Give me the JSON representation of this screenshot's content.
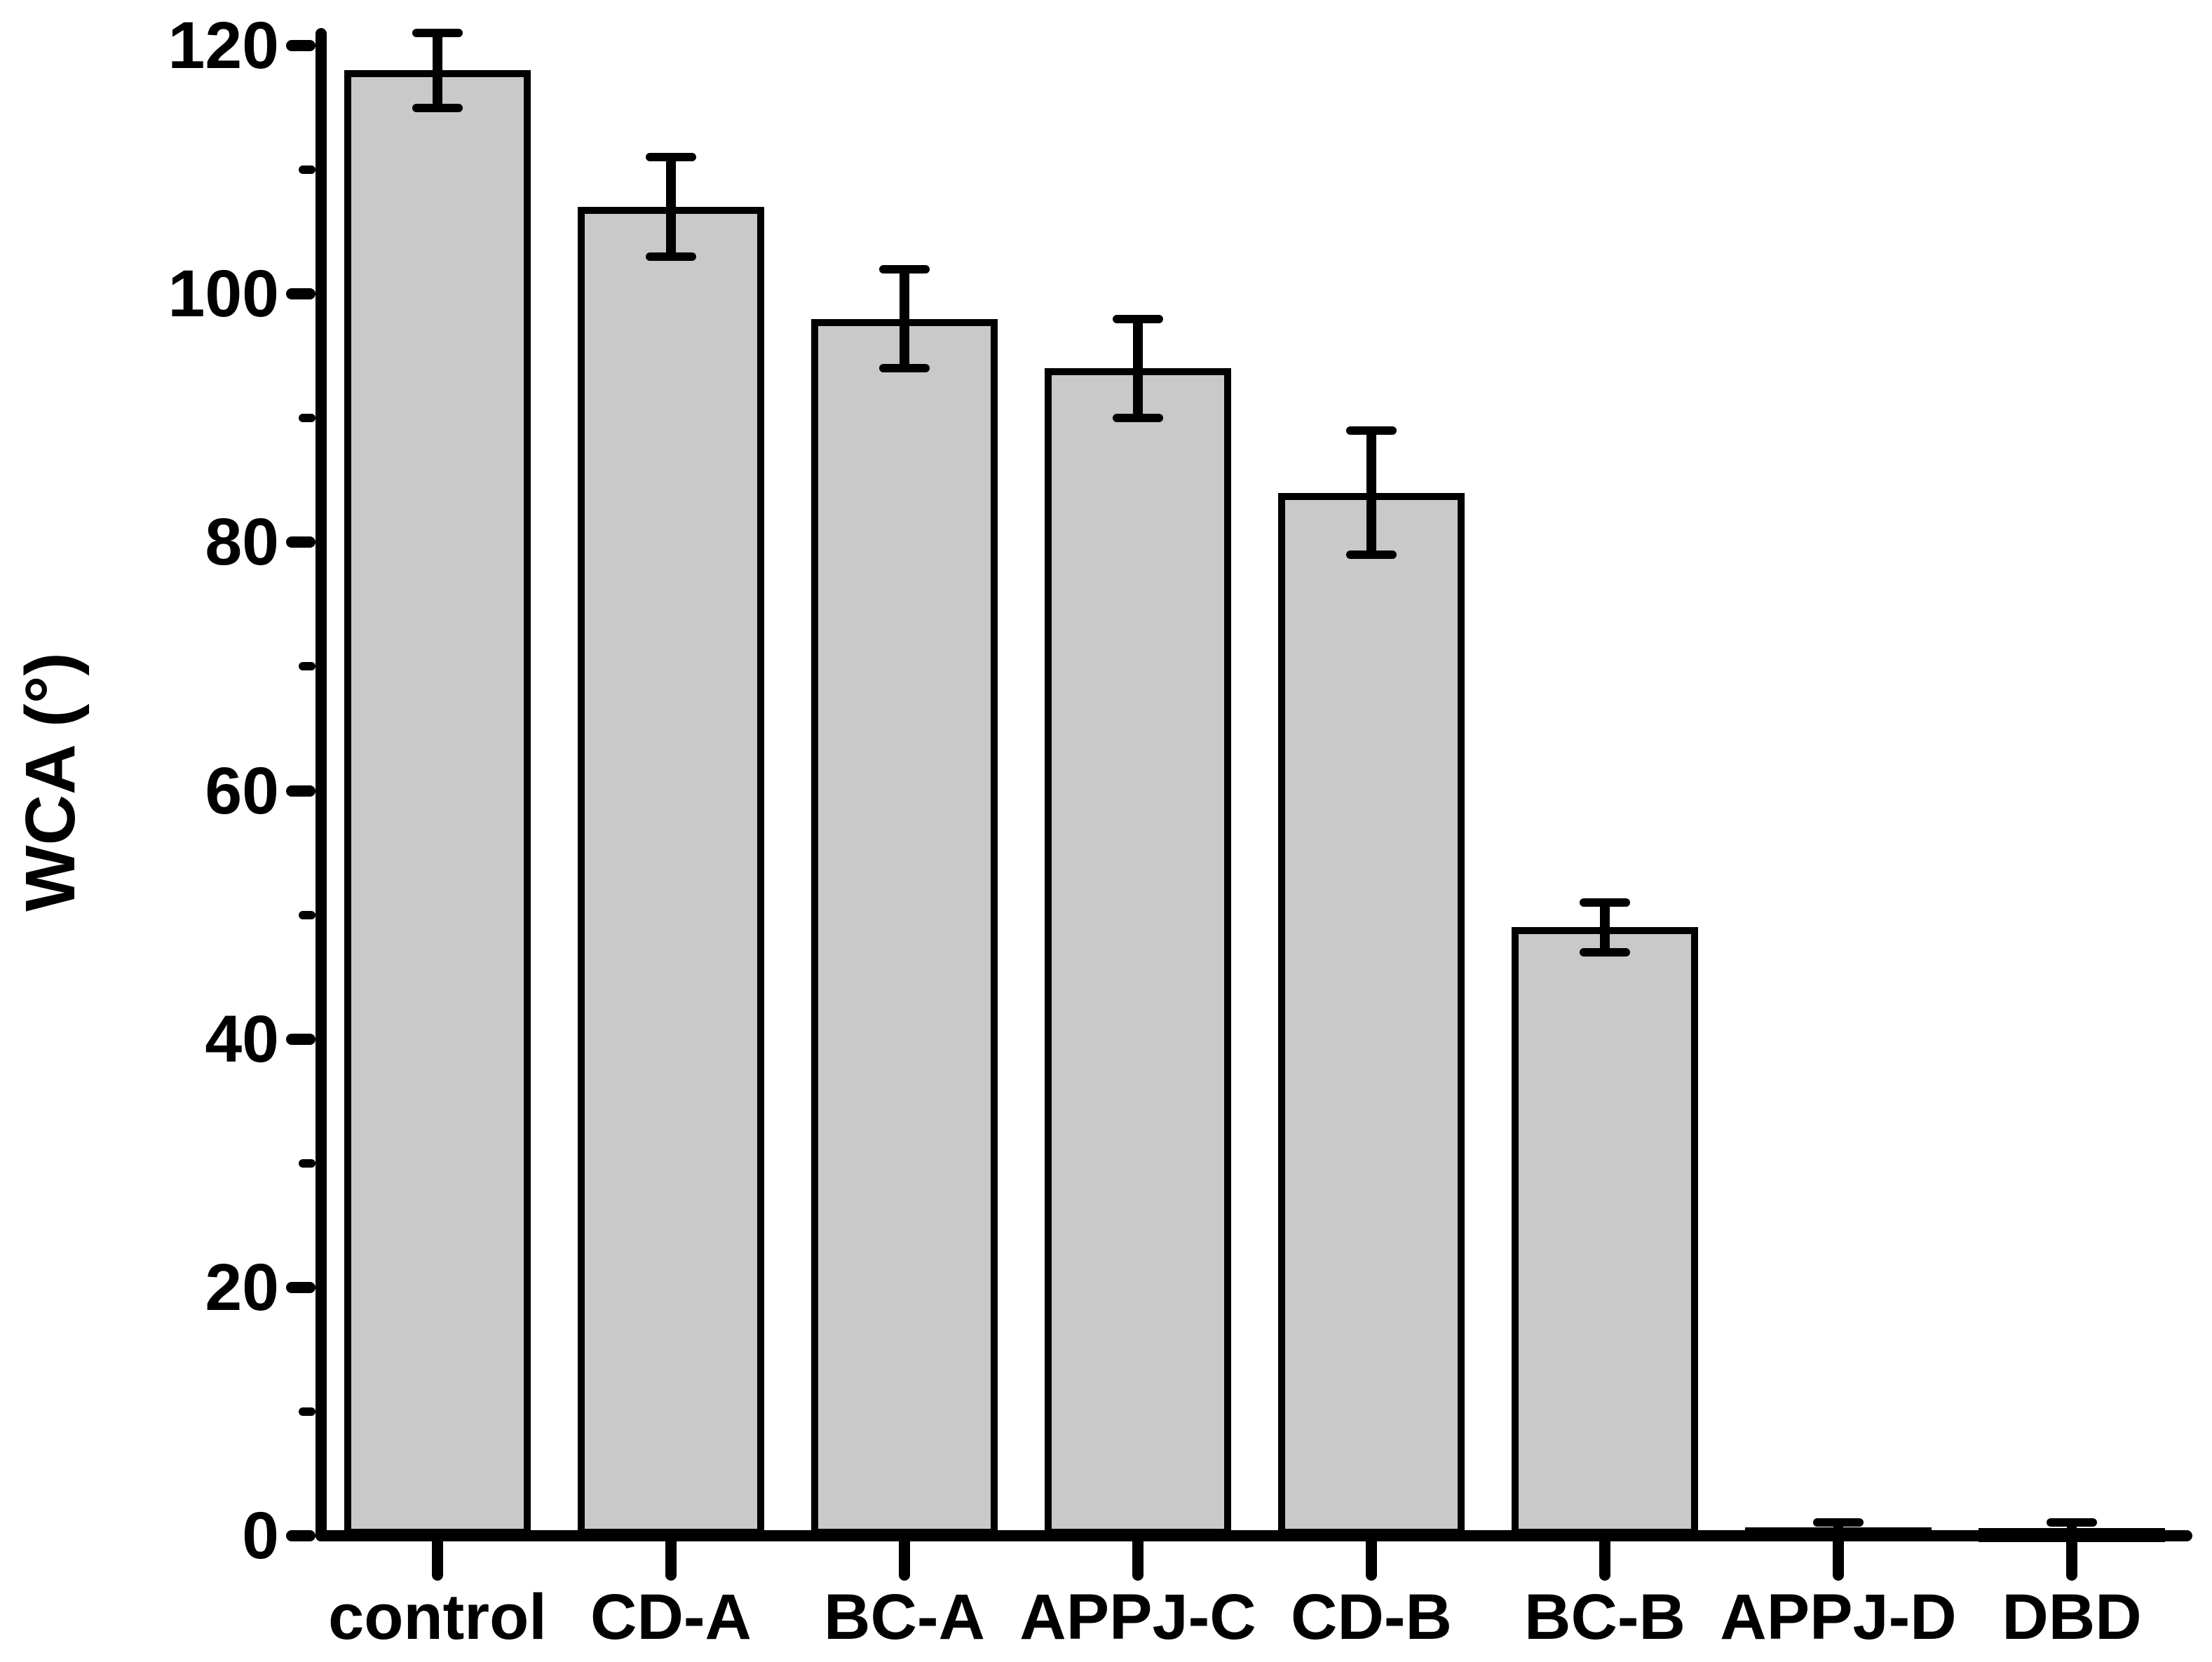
{
  "chart_data": {
    "type": "bar",
    "title": "",
    "xlabel": "",
    "ylabel": "WCA (°)",
    "categories": [
      "control",
      "CD-A",
      "BC-A",
      "APPJ-C",
      "CD-B",
      "BC-B",
      "APPJ-D",
      "DBD"
    ],
    "values": [
      118,
      107,
      98,
      94,
      84,
      49,
      0.7,
      0.6
    ],
    "errors": [
      3,
      4,
      4,
      4,
      5,
      2,
      0.4,
      0.5
    ],
    "ylim": [
      0,
      120
    ],
    "ytick_step": 20,
    "yminor_step": 10,
    "ytick_labels": [
      "0",
      "20",
      "40",
      "60",
      "80",
      "100",
      "120"
    ],
    "grid": false,
    "legend": "none",
    "bar_fill": "#c9c9c9",
    "bar_border": "#000000",
    "axis_color": "#000000",
    "error_bar_color": "#000000"
  }
}
